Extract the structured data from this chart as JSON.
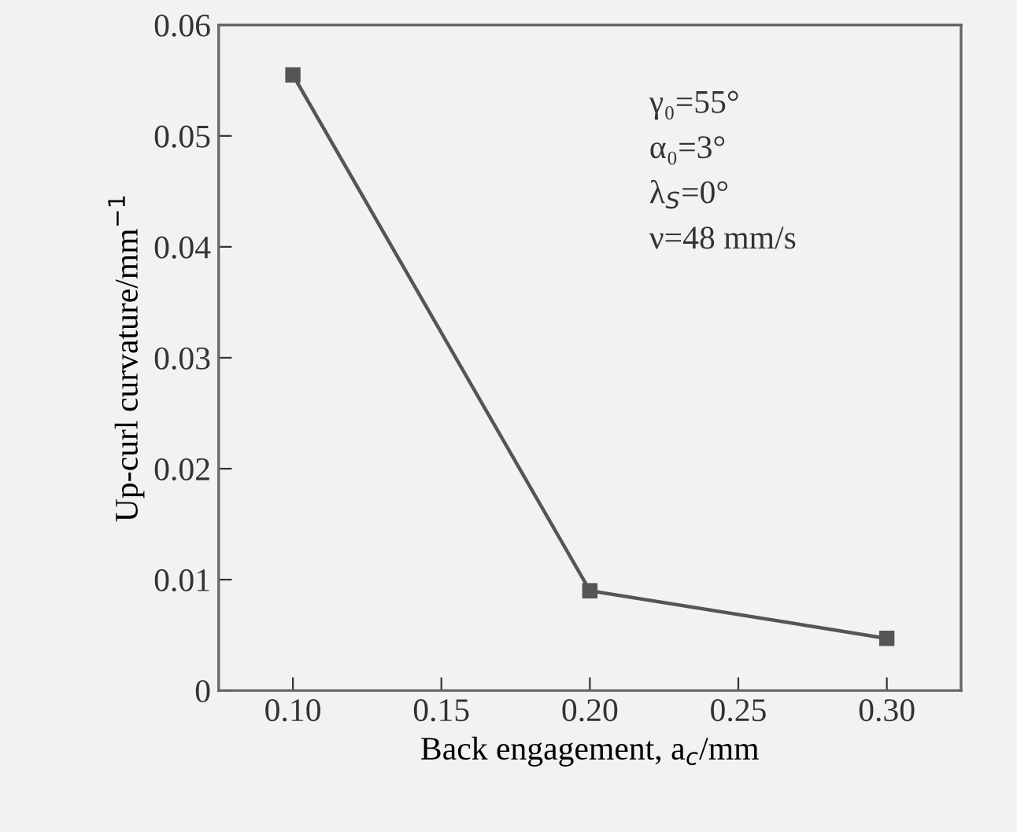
{
  "chart_data": {
    "type": "line",
    "xlabel": "Back engagement, a$_{c}$/mm",
    "ylabel": "Up-curl curvature/mm$^{−1}$",
    "x": [
      0.1,
      0.2,
      0.3
    ],
    "series": [
      {
        "color": "#555555",
        "values": [
          0.0555,
          0.009,
          0.0047
        ]
      }
    ],
    "marker": "square",
    "line_style": "solid",
    "grid": false,
    "legend": false,
    "xlim": [
      0.075,
      0.325
    ],
    "xticks": [
      {
        "value": 0.1,
        "label": "0.10"
      },
      {
        "value": 0.15,
        "label": "0.15"
      },
      {
        "value": 0.2,
        "label": "0.20"
      },
      {
        "value": 0.25,
        "label": "0.25"
      },
      {
        "value": 0.3,
        "label": "0.30"
      }
    ],
    "ylim": [
      0,
      0.06
    ],
    "yticks": [
      0,
      0.01,
      0.02,
      0.03,
      0.04,
      0.05,
      0.06
    ],
    "annotations": [
      "γ₀=55°",
      "α₀=3°",
      "λ$_{S}$=0°",
      "ν=48 mm/s"
    ]
  }
}
